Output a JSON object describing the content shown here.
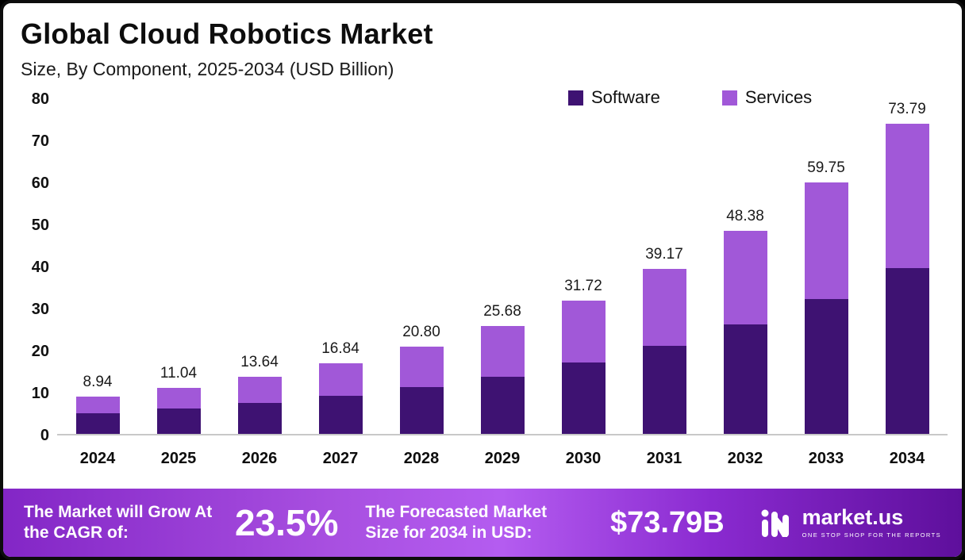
{
  "header": {
    "title": "Global Cloud Robotics Market",
    "subtitle": "Size, By Component, 2025-2034 (USD Billion)"
  },
  "legend": {
    "software": "Software",
    "services": "Services"
  },
  "colors": {
    "software": "#3e1272",
    "services": "#a158d8"
  },
  "chart_data": {
    "type": "bar",
    "stacked": true,
    "title": "Global Cloud Robotics Market Size, By Component, 2025-2034 (USD Billion)",
    "categories": [
      "2024",
      "2025",
      "2026",
      "2027",
      "2028",
      "2029",
      "2030",
      "2031",
      "2032",
      "2033",
      "2034"
    ],
    "series": [
      {
        "name": "Software",
        "values": [
          4.9,
          6.0,
          7.3,
          9.0,
          11.1,
          13.6,
          17.0,
          21.0,
          26.0,
          32.0,
          39.5
        ]
      },
      {
        "name": "Services",
        "values": [
          4.04,
          5.04,
          6.34,
          7.84,
          9.7,
          12.08,
          14.72,
          18.17,
          22.38,
          27.75,
          34.29
        ]
      }
    ],
    "totals": [
      8.94,
      11.04,
      13.64,
      16.84,
      20.8,
      25.68,
      31.72,
      39.17,
      48.38,
      59.75,
      73.79
    ],
    "total_labels": [
      "8.94",
      "11.04",
      "13.64",
      "16.84",
      "20.80",
      "25.68",
      "31.72",
      "39.17",
      "48.38",
      "59.75",
      "73.79"
    ],
    "xlabel": "",
    "ylabel": "",
    "ylim": [
      0,
      80
    ],
    "yticks": [
      0,
      10,
      20,
      30,
      40,
      50,
      60,
      70,
      80
    ],
    "grid": false,
    "legend_position": "top-right"
  },
  "footer": {
    "cagr_label": "The Market will Grow At the CAGR of:",
    "cagr_value": "23.5%",
    "forecast_label": "The Forecasted Market Size for 2034 in USD:",
    "forecast_value": "$73.79B",
    "brand": "market.us",
    "brand_tagline": "ONE STOP SHOP FOR THE REPORTS"
  }
}
